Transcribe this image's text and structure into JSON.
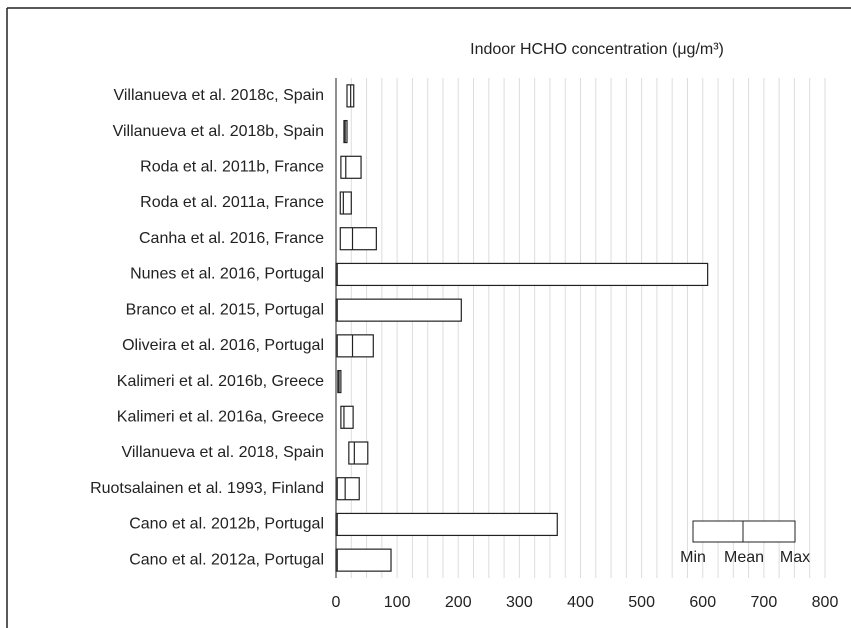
{
  "chart_data": {
    "type": "range_bar",
    "title": "Indoor HCHO concentration (μg/m³)",
    "categories": [
      "Villanueva et al. 2018c, Spain",
      "Villanueva et al. 2018b, Spain",
      "Roda et al. 2011b, France",
      "Roda et al. 2011a, France",
      "Canha et al. 2016, France",
      "Nunes et al. 2016, Portugal",
      "Branco et al. 2015, Portugal",
      "Oliveira et al. 2016, Portugal",
      "Kalimeri et al. 2016b, Greece",
      "Kalimeri et al. 2016a, Greece",
      "Villanueva et al. 2018, Spain",
      "Ruotsalainen et al. 1993, Finland",
      "Cano et al. 2012b, Portugal",
      "Cano et al. 2012a, Portugal"
    ],
    "series": [
      {
        "name": "Min",
        "values": [
          18,
          13,
          8,
          7,
          7,
          0,
          0,
          2,
          3,
          8,
          21,
          2,
          0,
          0
        ]
      },
      {
        "name": "Mean",
        "values": [
          24,
          15,
          16,
          12,
          27,
          2,
          2,
          27,
          5,
          13,
          30,
          15,
          2,
          2
        ]
      },
      {
        "name": "Max",
        "values": [
          29,
          18,
          41,
          25,
          66,
          608,
          205,
          61,
          8,
          28,
          52,
          38,
          362,
          90
        ]
      }
    ],
    "color": "#222222",
    "xlim": [
      0,
      800
    ],
    "xticks": [
      0,
      100,
      200,
      300,
      400,
      500,
      600,
      700,
      800
    ],
    "grid": true,
    "legend": "lower right"
  }
}
